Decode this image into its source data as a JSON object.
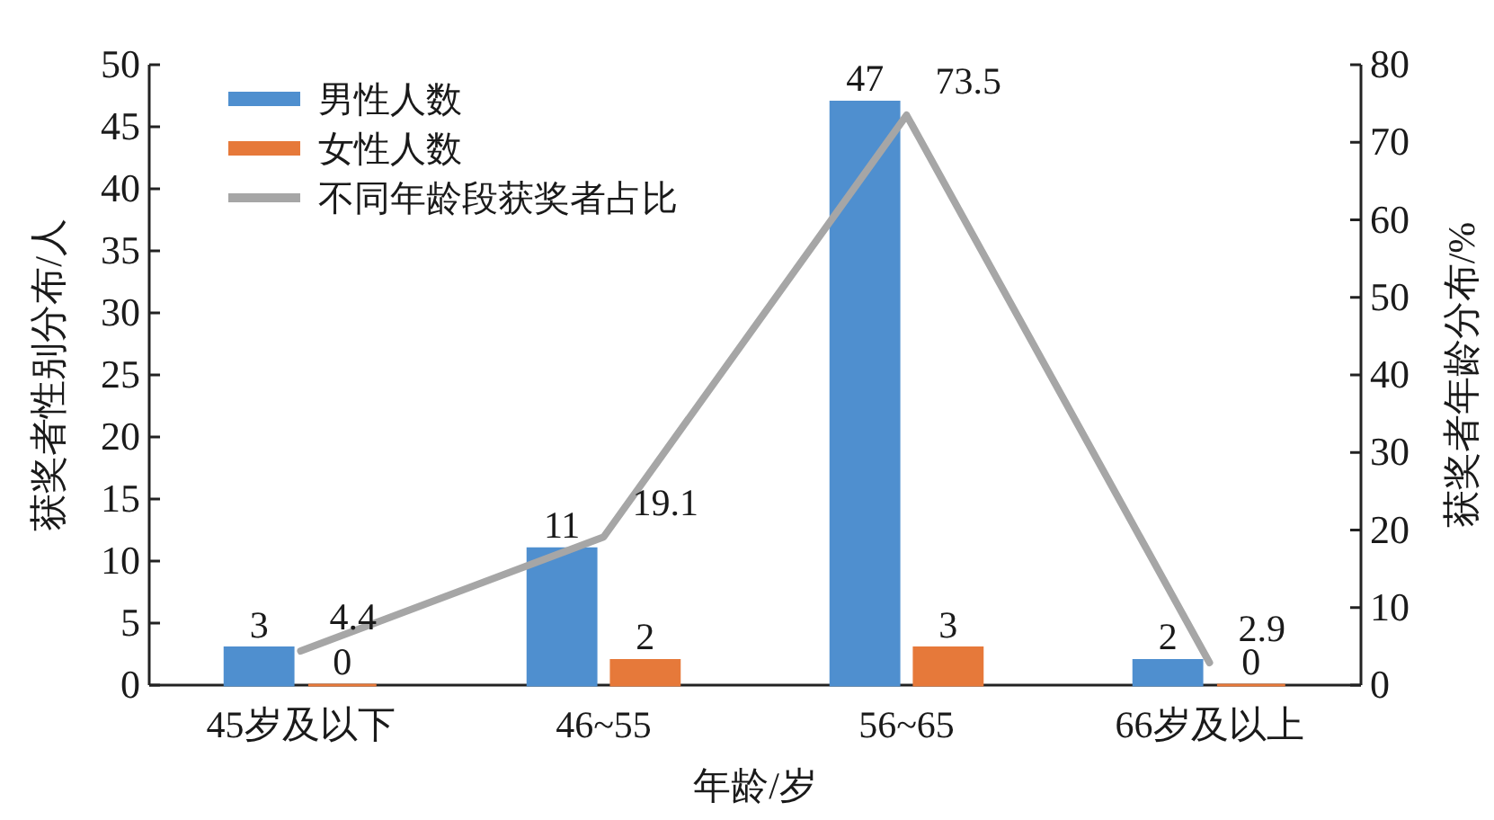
{
  "chart_data": {
    "type": "bar",
    "categories": [
      "45岁及以下",
      "46~55",
      "56~65",
      "66岁及以上"
    ],
    "xlabel": "年龄/岁",
    "ylabel": "获奖者性别分布/人",
    "y2label": "获奖者年龄分布/%",
    "series": [
      {
        "name": "男性人数",
        "color": "#4f8fcf",
        "values": [
          3,
          11,
          47,
          2
        ]
      },
      {
        "name": "女性人数",
        "color": "#e6793a",
        "values": [
          0,
          2,
          3,
          0
        ]
      },
      {
        "name": "不同年龄段获奖者占比",
        "type": "line",
        "axis": "y2",
        "color": "#a6a6a6",
        "values": [
          4.4,
          19.1,
          73.5,
          2.9
        ]
      }
    ],
    "ylim": [
      0,
      50
    ],
    "yticks": [
      0,
      5,
      10,
      15,
      20,
      25,
      30,
      35,
      40,
      45,
      50
    ],
    "y2lim": [
      0,
      80
    ],
    "y2ticks": [
      0,
      10,
      20,
      30,
      40,
      50,
      60,
      70,
      80
    ],
    "data_labels": true,
    "legend": "top left",
    "grid": false
  }
}
